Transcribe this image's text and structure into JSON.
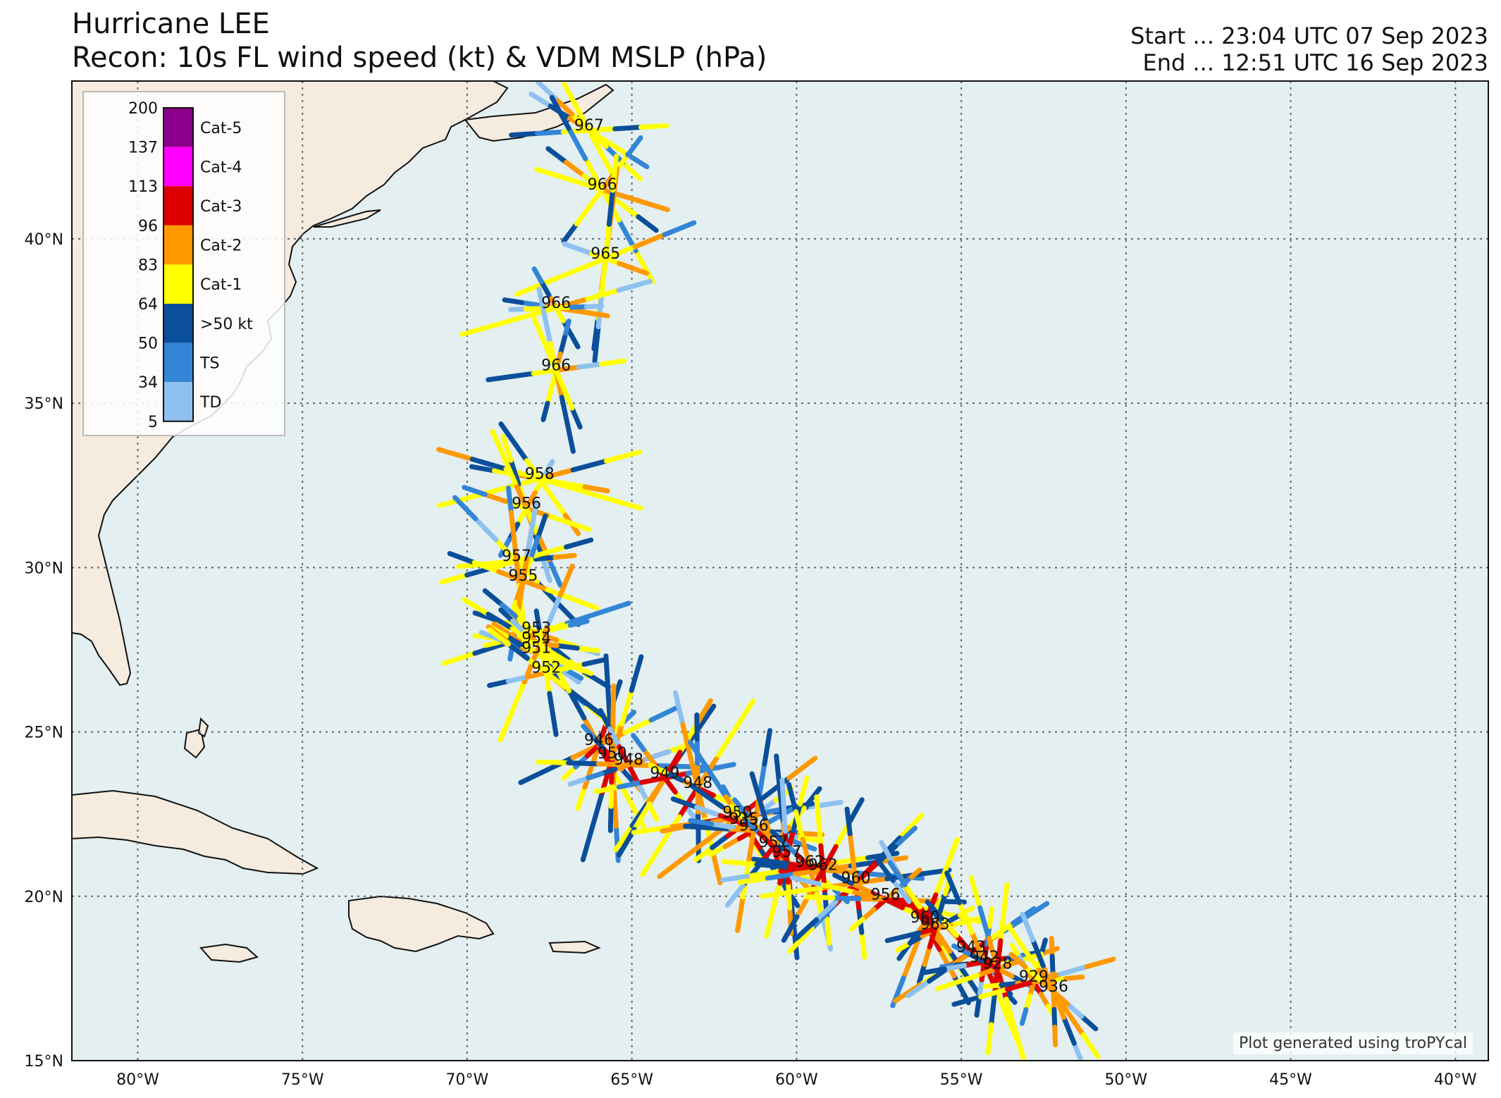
{
  "title": {
    "line1": "Hurricane LEE",
    "line2": "Recon: 10s FL wind speed (kt) & VDM MSLP (hPa)",
    "start": "Start ... 23:04 UTC 07 Sep 2023",
    "end": "End ... 12:51 UTC 16 Sep 2023"
  },
  "credit": "Plot generated using troPYcal",
  "colors": {
    "ocean": "#e3eff1",
    "land": "#f5ebde",
    "coast": "#111111",
    "gridline": "#666666"
  },
  "axes": {
    "lon_ticks": [
      {
        "value": -80,
        "label": "80°W"
      },
      {
        "value": -75,
        "label": "75°W"
      },
      {
        "value": -70,
        "label": "70°W"
      },
      {
        "value": -65,
        "label": "65°W"
      },
      {
        "value": -60,
        "label": "60°W"
      },
      {
        "value": -55,
        "label": "55°W"
      },
      {
        "value": -50,
        "label": "50°W"
      },
      {
        "value": -45,
        "label": "45°W"
      },
      {
        "value": -40,
        "label": "40°W"
      }
    ],
    "lat_ticks": [
      {
        "value": 15,
        "label": "15°N"
      },
      {
        "value": 20,
        "label": "20°N"
      },
      {
        "value": 25,
        "label": "25°N"
      },
      {
        "value": 30,
        "label": "30°N"
      },
      {
        "value": 35,
        "label": "35°N"
      },
      {
        "value": 40,
        "label": "40°N"
      }
    ],
    "lon_range": [
      -82,
      -39
    ],
    "lat_range": [
      15,
      44.8
    ]
  },
  "legend": {
    "bounds": [
      "200",
      "137",
      "113",
      "96",
      "83",
      "64",
      "50",
      "34",
      "5"
    ],
    "categories": [
      {
        "label": "Cat-5",
        "color": "#8b008b"
      },
      {
        "label": "Cat-4",
        "color": "#ff00ff"
      },
      {
        "label": "Cat-3",
        "color": "#dd0000"
      },
      {
        "label": "Cat-2",
        "color": "#ff9900"
      },
      {
        "label": "Cat-1",
        "color": "#ffff00"
      },
      {
        "label": ">50 kt",
        "color": "#0b4f9a"
      },
      {
        "label": "TS",
        "color": "#3385d6"
      },
      {
        "label": "TD",
        "color": "#8fc1f0"
      }
    ]
  },
  "pressure_labels": [
    {
      "text": "967",
      "lon": -66.3,
      "lat": 43.3
    },
    {
      "text": "966",
      "lon": -65.9,
      "lat": 41.5
    },
    {
      "text": "965",
      "lon": -65.8,
      "lat": 39.4
    },
    {
      "text": "966",
      "lon": -67.3,
      "lat": 37.9
    },
    {
      "text": "966",
      "lon": -67.3,
      "lat": 36.0
    },
    {
      "text": "958",
      "lon": -67.8,
      "lat": 32.7
    },
    {
      "text": "956",
      "lon": -68.2,
      "lat": 31.8
    },
    {
      "text": "957",
      "lon": -68.5,
      "lat": 30.2
    },
    {
      "text": "955",
      "lon": -68.3,
      "lat": 29.6
    },
    {
      "text": "953",
      "lon": -67.9,
      "lat": 28.0
    },
    {
      "text": "954",
      "lon": -67.9,
      "lat": 27.7
    },
    {
      "text": "951",
      "lon": -67.9,
      "lat": 27.4
    },
    {
      "text": "952",
      "lon": -67.6,
      "lat": 26.8
    },
    {
      "text": "946",
      "lon": -66.0,
      "lat": 24.6
    },
    {
      "text": "950",
      "lon": -65.6,
      "lat": 24.2
    },
    {
      "text": "948",
      "lon": -65.1,
      "lat": 24.0
    },
    {
      "text": "949",
      "lon": -64.0,
      "lat": 23.6
    },
    {
      "text": "948",
      "lon": -63.0,
      "lat": 23.3
    },
    {
      "text": "950",
      "lon": -61.8,
      "lat": 22.4
    },
    {
      "text": "935",
      "lon": -61.6,
      "lat": 22.2
    },
    {
      "text": "936",
      "lon": -61.3,
      "lat": 22.0
    },
    {
      "text": "957",
      "lon": -60.7,
      "lat": 21.5
    },
    {
      "text": "957",
      "lon": -60.3,
      "lat": 21.2
    },
    {
      "text": "962",
      "lon": -59.6,
      "lat": 20.9
    },
    {
      "text": "962",
      "lon": -59.2,
      "lat": 20.8
    },
    {
      "text": "960",
      "lon": -58.2,
      "lat": 20.4
    },
    {
      "text": "956",
      "lon": -57.3,
      "lat": 19.9
    },
    {
      "text": "960",
      "lon": -56.1,
      "lat": 19.2
    },
    {
      "text": "963",
      "lon": -55.8,
      "lat": 19.0
    },
    {
      "text": "943",
      "lon": -54.7,
      "lat": 18.3
    },
    {
      "text": "942",
      "lon": -54.3,
      "lat": 18.0
    },
    {
      "text": "928",
      "lon": -53.9,
      "lat": 17.8
    },
    {
      "text": "929",
      "lon": -52.8,
      "lat": 17.4
    },
    {
      "text": "936",
      "lon": -52.2,
      "lat": 17.1
    }
  ]
}
